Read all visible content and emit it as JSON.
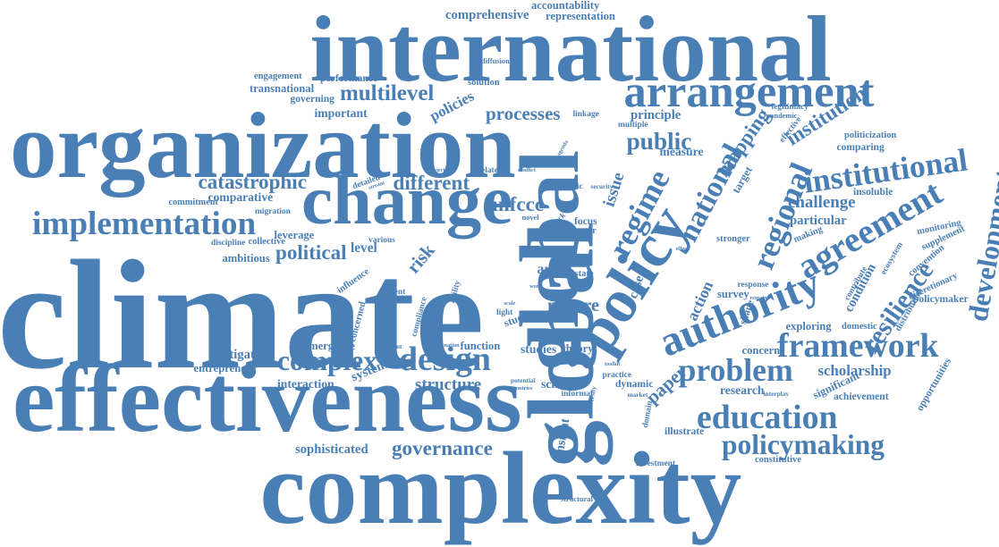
{
  "cloud": {
    "color": "#4a7fb6",
    "words": [
      "climate",
      "international",
      "organization",
      "effectiveness",
      "complexity",
      "change",
      "global",
      "policy",
      "arrangement",
      "implementation",
      "authority",
      "framework",
      "regional",
      "agreement",
      "national",
      "regime",
      "problem",
      "education",
      "design",
      "complex",
      "institutional",
      "policymaking",
      "development",
      "resilience",
      "catastrophic",
      "multilevel",
      "governance",
      "public",
      "mapping",
      "processes",
      "unfccc",
      "different",
      "political",
      "institution",
      "challenge",
      "scholarship",
      "paper",
      "structure",
      "nature",
      "comprehensive",
      "representation",
      "accountability",
      "performance",
      "transnational",
      "engagement",
      "governing",
      "important",
      "policies",
      "principle",
      "measure",
      "issue",
      "target",
      "comparative",
      "commitment",
      "migration",
      "ambitious",
      "leverage",
      "collective",
      "discipline",
      "level",
      "various",
      "risk",
      "action",
      "survey",
      "condition",
      "particular",
      "making",
      "insoluble",
      "comparing",
      "politicization",
      "legitimacy",
      "pandemic",
      "effective",
      "multiple",
      "exploring",
      "domestic",
      "concern",
      "research",
      "significant",
      "achievement",
      "opportunities",
      "policymaker",
      "discretionary",
      "distribution",
      "convention",
      "supplement",
      "monitoring",
      "ecosystem",
      "mitigation",
      "entrepreneur",
      "emergence",
      "interaction",
      "system",
      "sophisticated",
      "studies",
      "theory",
      "function",
      "scholar",
      "dynamic",
      "illustrate",
      "insight",
      "constitutive",
      "investment",
      "structural",
      "area",
      "case",
      "shape",
      "focus",
      "actor",
      "law",
      "stronger",
      "response",
      "detailed",
      "related",
      "solution",
      "diffusion",
      "linkage",
      "current",
      "influence",
      "concerned",
      "compliance",
      "ability",
      "light",
      "study",
      "practice",
      "informal",
      "market",
      "interplay",
      "domain",
      "politic",
      "security",
      "agenda",
      "conflict",
      "project",
      "stream",
      "countries",
      "potential",
      "nation",
      "account",
      "review",
      "toolkit",
      "diversity",
      "novel",
      "stock",
      "contribute",
      "remain",
      "effect",
      "state",
      "work",
      "scale"
    ]
  }
}
